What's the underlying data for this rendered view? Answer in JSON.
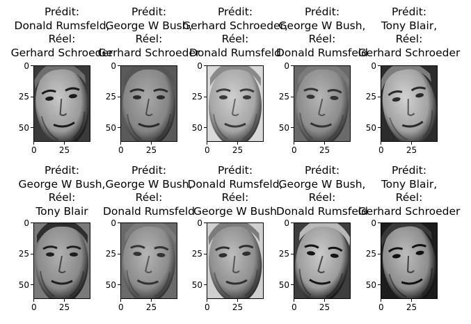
{
  "chart_data": {
    "type": "image-grid",
    "rows": 2,
    "cols": 5,
    "colormap": "gray",
    "image_shape": [
      62,
      47
    ],
    "xticks": [
      0,
      25
    ],
    "yticks": [
      0,
      25,
      50
    ],
    "panels": [
      {
        "title": [
          "Prédit:",
          "Donald Rumsfeld,",
          "Réel:",
          "Gerhard Schroeder"
        ],
        "predicted": "Donald Rumsfeld",
        "actual": "Gerhard Schroeder",
        "face": "face-gerhard-schroeder-smiling"
      },
      {
        "title": [
          "Prédit:",
          "George W Bush,",
          "Réel:",
          "Gerhard Schroeder"
        ],
        "predicted": "George W Bush",
        "actual": "Gerhard Schroeder",
        "face": "face-gerhard-schroeder"
      },
      {
        "title": [
          "Prédit:",
          "Gerhard Schroeder,",
          "Réel:",
          "Donald Rumsfeld"
        ],
        "predicted": "Gerhard Schroeder",
        "actual": "Donald Rumsfeld",
        "face": "face-donald-rumsfeld"
      },
      {
        "title": [
          "Prédit:",
          "George W Bush,",
          "Réel:",
          "Donald Rumsfeld"
        ],
        "predicted": "George W Bush",
        "actual": "Donald Rumsfeld",
        "face": "face-donald-rumsfeld-glasses"
      },
      {
        "title": [
          "Prédit:",
          "Tony Blair,",
          "Réel:",
          "Gerhard Schroeder"
        ],
        "predicted": "Tony Blair",
        "actual": "Gerhard Schroeder",
        "face": "face-gerhard-schroeder-laughing"
      },
      {
        "title": [
          "Prédit:",
          "George W Bush,",
          "Réel:",
          "Tony Blair"
        ],
        "predicted": "George W Bush",
        "actual": "Tony Blair",
        "face": "face-tony-blair"
      },
      {
        "title": [
          "Prédit:",
          "George W Bush,",
          "Réel:",
          "Donald Rumsfeld"
        ],
        "predicted": "George W Bush",
        "actual": "Donald Rumsfeld",
        "face": "face-donald-rumsfeld-glasses"
      },
      {
        "title": [
          "Prédit:",
          "Donald Rumsfeld,",
          "Réel:",
          "George W Bush"
        ],
        "predicted": "Donald Rumsfeld",
        "actual": "George W Bush",
        "face": "face-george-w-bush"
      },
      {
        "title": [
          "Prédit:",
          "George W Bush,",
          "Réel:",
          "Donald Rumsfeld"
        ],
        "predicted": "George W Bush",
        "actual": "Donald Rumsfeld",
        "face": "face-donald-rumsfeld-speaking"
      },
      {
        "title": [
          "Prédit:",
          "Tony Blair,",
          "Réel:",
          "Gerhard Schroeder"
        ],
        "predicted": "Tony Blair",
        "actual": "Gerhard Schroeder",
        "face": "face-gerhard-schroeder-dark"
      }
    ]
  }
}
